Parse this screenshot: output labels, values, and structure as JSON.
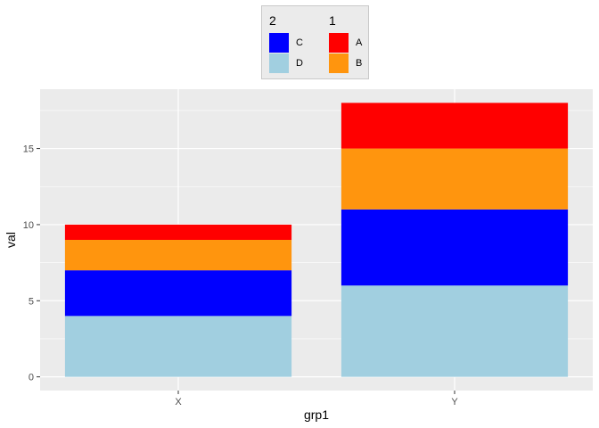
{
  "chart_data": {
    "type": "bar",
    "stacked": true,
    "categories": [
      "X",
      "Y"
    ],
    "series": [
      {
        "name": "D",
        "color": "#a1cfe0",
        "values": [
          4,
          6
        ]
      },
      {
        "name": "C",
        "color": "#0000ff",
        "values": [
          3,
          5
        ]
      },
      {
        "name": "B",
        "color": "#ff950e",
        "values": [
          2,
          4
        ]
      },
      {
        "name": "A",
        "color": "#ff0000",
        "values": [
          1,
          3
        ]
      }
    ],
    "xlabel": "grp1",
    "ylabel": "val",
    "ylim": [
      -0.9,
      18.9
    ],
    "yticks": [
      0,
      5,
      10,
      15
    ],
    "grid": true,
    "legend_placement": "top",
    "legend_groups": [
      {
        "title": "2",
        "entries": [
          {
            "label": "C",
            "color": "#0000ff"
          },
          {
            "label": "D",
            "color": "#a1cfe0"
          }
        ]
      },
      {
        "title": "1",
        "entries": [
          {
            "label": "A",
            "color": "#ff0000"
          },
          {
            "label": "B",
            "color": "#ff950e"
          }
        ]
      }
    ],
    "panel_color": "#ebebeb",
    "grid_color": "#ffffff"
  }
}
